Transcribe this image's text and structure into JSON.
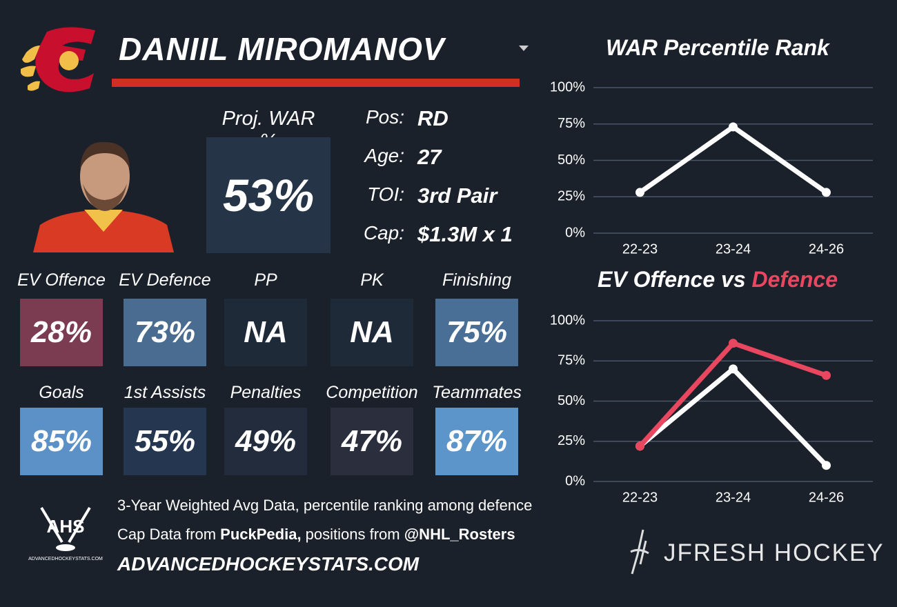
{
  "header": {
    "player": "DANIIL MIROMANOV"
  },
  "proj_war": {
    "label": "Proj. WAR %",
    "value": "53%"
  },
  "info": [
    {
      "label": "Pos:",
      "value": "RD"
    },
    {
      "label": "Age:",
      "value": "27"
    },
    {
      "label": "TOI:",
      "value": "3rd Pair"
    },
    {
      "label": "Cap:",
      "value": "$1.3M x 1"
    }
  ],
  "tiles": [
    {
      "label": "EV Offence",
      "value": "28%",
      "color": "#7b3b50"
    },
    {
      "label": "EV Defence",
      "value": "73%",
      "color": "#4a6c90"
    },
    {
      "label": "PP",
      "value": "NA",
      "color": "#1f2a38"
    },
    {
      "label": "PK",
      "value": "NA",
      "color": "#1f2a38"
    },
    {
      "label": "Finishing",
      "value": "75%",
      "color": "#4a6f96"
    },
    {
      "label": "Goals",
      "value": "85%",
      "color": "#5b91c6"
    },
    {
      "label": "1st Assists",
      "value": "55%",
      "color": "#243650"
    },
    {
      "label": "Penalties",
      "value": "49%",
      "color": "#232c3c"
    },
    {
      "label": "Competition",
      "value": "47%",
      "color": "#2a2e3d"
    },
    {
      "label": "Teammates",
      "value": "87%",
      "color": "#5c95ca"
    }
  ],
  "footer": {
    "logo_text": "AHS",
    "logo_small": "ADVANCEDHOCKEYSTATS.COM",
    "line1": "3-Year Weighted Avg Data, percentile ranking among defence",
    "line2": [
      "Cap Data from ",
      "PuckPedia,",
      " positions from ",
      "@NHL_Rosters"
    ],
    "site": "ADVANCEDHOCKEYSTATS.COM",
    "brand": "JFRESH HOCKEY"
  },
  "chart_data": [
    {
      "type": "line",
      "title": "WAR Percentile Rank",
      "categories": [
        "22-23",
        "23-24",
        "24-26"
      ],
      "series": [
        {
          "color": "#ffffff",
          "values": [
            28,
            73,
            28
          ]
        }
      ],
      "ylim": [
        0,
        100
      ],
      "yticks": [
        {
          "value": 0,
          "label": "0%"
        },
        {
          "value": 25,
          "label": "25%"
        },
        {
          "value": 50,
          "label": "50%"
        },
        {
          "value": 75,
          "label": "75%"
        },
        {
          "value": 100,
          "label": "100%"
        }
      ],
      "grid": true
    },
    {
      "type": "line",
      "title": "EV Offence vs",
      "title_highlight": "Defence",
      "highlight_color": "#e8475f",
      "categories": [
        "22-23",
        "23-24",
        "24-26"
      ],
      "series": [
        {
          "color": "#ffffff",
          "values": [
            22,
            70,
            10
          ]
        },
        {
          "color": "#e8475f",
          "values": [
            22,
            86,
            66
          ]
        }
      ],
      "ylim": [
        0,
        100
      ],
      "yticks": [
        {
          "value": 0,
          "label": "0%"
        },
        {
          "value": 25,
          "label": "25%"
        },
        {
          "value": 50,
          "label": "50%"
        },
        {
          "value": 75,
          "label": "75%"
        },
        {
          "value": 100,
          "label": "100%"
        }
      ],
      "grid": true
    }
  ]
}
